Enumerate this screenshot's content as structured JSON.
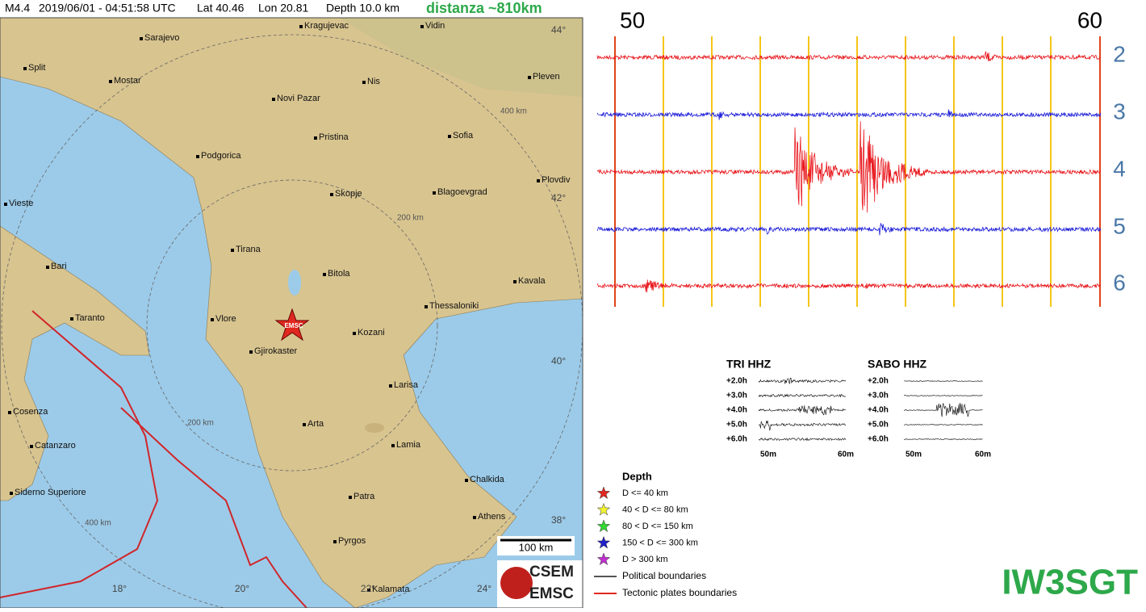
{
  "header": {
    "magnitude": "M4.4",
    "datetime": "2019/06/01 - 04:51:58 UTC",
    "lat": "Lat 40.46",
    "lon": "Lon 20.81",
    "depth": "Depth 10.0 km",
    "distance": "distanza ~810km"
  },
  "map": {
    "cities": [
      "Kragujevac",
      "Vidin",
      "Sarajevo",
      "Split",
      "Mostar",
      "Nis",
      "Pleven",
      "Novi Pazar",
      "Pristina",
      "Sofia",
      "Podgorica",
      "Plovdiv",
      "Skopje",
      "Blagoevgrad",
      "Vieste",
      "Tirana",
      "Bitola",
      "Bari",
      "Kavala",
      "Thessaloniki",
      "Taranto",
      "Vlore",
      "Kozani",
      "Gjirokaster",
      "Larisa",
      "Cosenza",
      "Arta",
      "Catanzaro",
      "Lamia",
      "Chalkida",
      "Siderno Superiore",
      "Patra",
      "Athens",
      "Pyrgos",
      "Kalamata"
    ],
    "lat_labels": [
      "44°",
      "42°",
      "40°",
      "38°"
    ],
    "lon_labels": [
      "18°",
      "20°",
      "22°",
      "24°"
    ],
    "ring_labels": [
      "400 km",
      "200 km",
      "200 km",
      "400 km"
    ],
    "epicenter_label": "EMSC",
    "scale_label": "100 km",
    "logo": [
      "CSEM",
      "EMSC"
    ]
  },
  "legend": {
    "title": "Depth",
    "depths": [
      "D <= 40 km",
      "40 < D <= 80 km",
      "80 < D <= 150 km",
      "150 < D <= 300 km",
      "D > 300 km"
    ],
    "lines": [
      "Political boundaries",
      "Tectonic plates boundaries"
    ]
  },
  "seismogram": {
    "time_labels": [
      "50",
      "60"
    ],
    "channels": [
      "2",
      "3",
      "4",
      "5",
      "6"
    ]
  },
  "panels": [
    {
      "title": "TRI HHZ",
      "rows": [
        "+2.0h",
        "+3.0h",
        "+4.0h",
        "+5.0h",
        "+6.0h"
      ],
      "x_labels": [
        "50m",
        "60m"
      ]
    },
    {
      "title": "SABO HHZ",
      "rows": [
        "+2.0h",
        "+3.0h",
        "+4.0h",
        "+5.0h",
        "+6.0h"
      ],
      "x_labels": [
        "50m",
        "60m"
      ]
    }
  ],
  "callsign": "IW3SGT"
}
